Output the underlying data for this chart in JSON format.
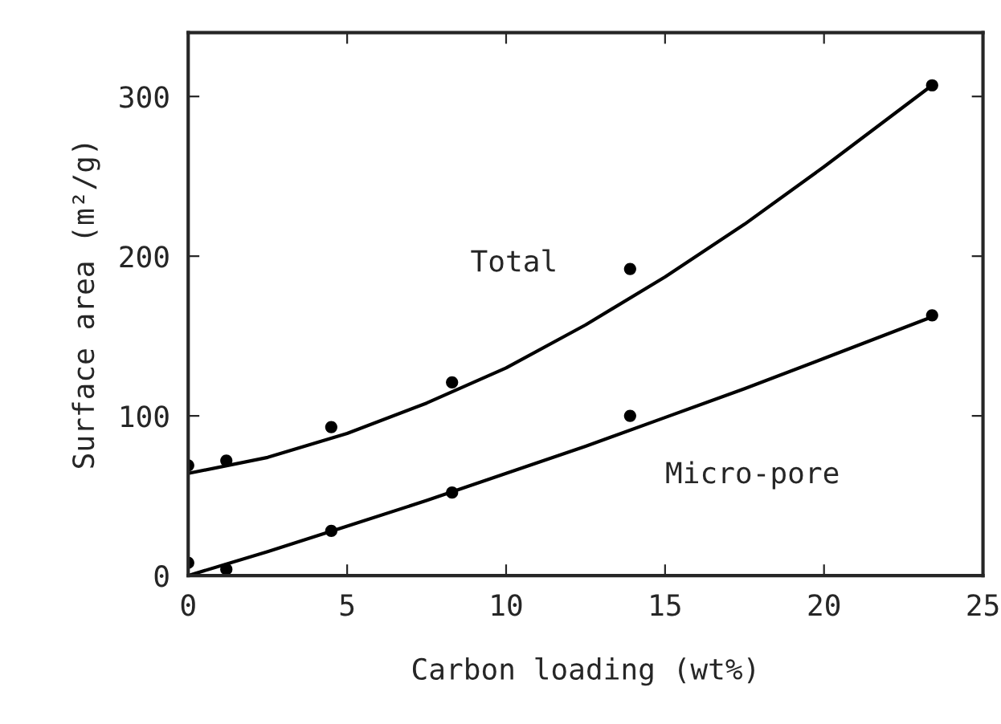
{
  "chart_data": {
    "type": "scatter",
    "xlabel": "Carbon loading (wt%)",
    "ylabel": "Surface area (m²/g)",
    "xlim": [
      0,
      25
    ],
    "ylim": [
      0,
      340
    ],
    "xticks": [
      0,
      5,
      10,
      15,
      20,
      25
    ],
    "yticks": [
      0,
      100,
      200,
      300
    ],
    "grid": false,
    "legend": false,
    "marker": "circle",
    "x": [
      0,
      1.2,
      4.5,
      8.3,
      13.9,
      23.4
    ],
    "series": [
      {
        "color": "#000000",
        "values": [
          69,
          72,
          93,
          121,
          192,
          307
        ]
      },
      {
        "color": "#000000",
        "values": [
          8,
          4,
          28,
          52,
          100,
          163
        ]
      },
      {
        "type": "line",
        "marker": "none",
        "color": "#000000",
        "x": [
          0,
          2.5,
          5,
          7.5,
          10,
          12.5,
          15,
          17.5,
          20,
          23.4
        ],
        "values": [
          64,
          74,
          89,
          108,
          130,
          157,
          187,
          220,
          256,
          307
        ]
      },
      {
        "type": "line",
        "marker": "none",
        "color": "#000000",
        "x": [
          0,
          2.5,
          5,
          7.5,
          10,
          12.5,
          15,
          17.5,
          20,
          23.4
        ],
        "values": [
          0,
          15,
          31,
          47,
          64,
          81,
          99,
          117,
          136,
          162
        ]
      }
    ],
    "annotations": [
      "Total",
      "Micro-pore"
    ]
  }
}
